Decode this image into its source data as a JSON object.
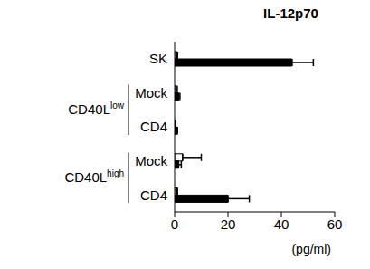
{
  "chart_data": {
    "type": "bar",
    "title": "IL-12p70",
    "orientation": "horizontal",
    "categories": [
      "SK",
      "Mock",
      "CD4",
      "Mock",
      "CD4"
    ],
    "groups": [
      {
        "label": "CD40L",
        "superscript": "low",
        "categories": [
          1,
          2
        ]
      },
      {
        "label": "CD40L",
        "superscript": "high",
        "categories": [
          3,
          4
        ]
      }
    ],
    "series": [
      {
        "color": "#ffffff",
        "values": [
          1,
          0.5,
          0.3,
          3,
          1
        ],
        "errors": [
          0,
          0.5,
          0,
          7,
          0
        ]
      },
      {
        "color": "#000000",
        "values": [
          44,
          1.5,
          1,
          1.5,
          20
        ],
        "errors": [
          8,
          0.5,
          0,
          1,
          8
        ]
      }
    ],
    "x_label": "(pg/ml)",
    "xlim": [
      0,
      60
    ],
    "xticks": [
      0,
      20,
      40,
      60
    ],
    "grid": false
  }
}
